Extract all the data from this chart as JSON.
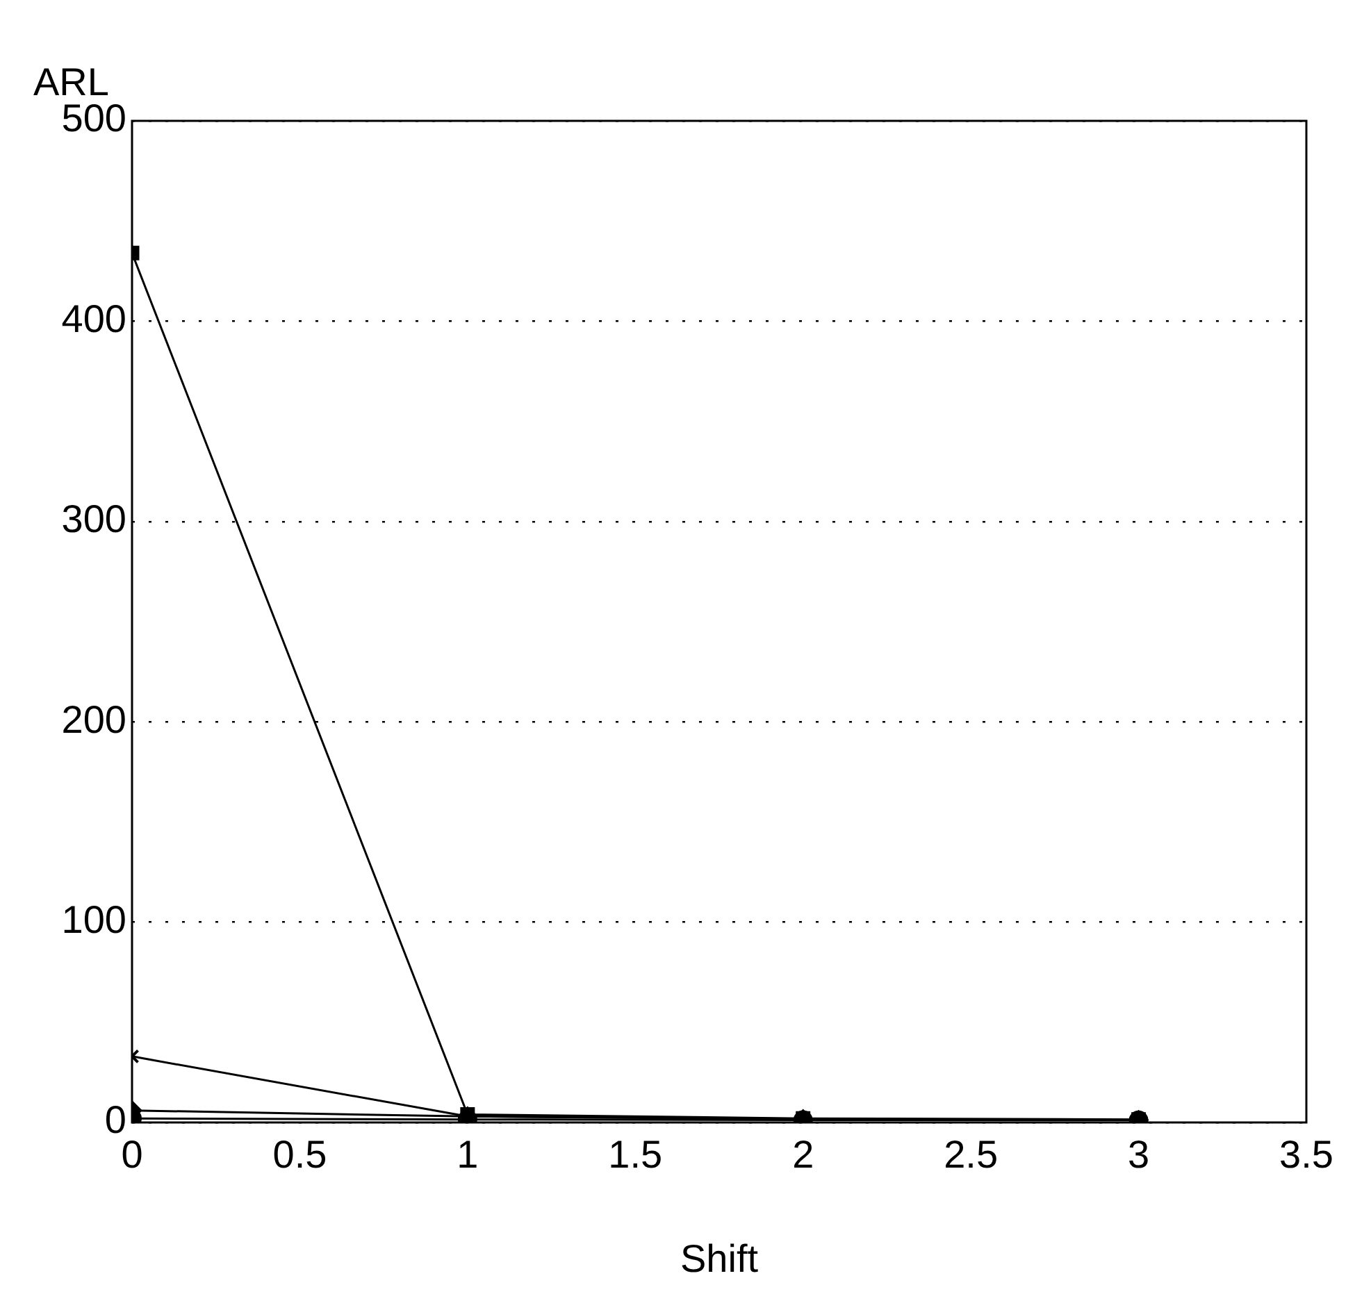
{
  "chart_data": {
    "type": "line",
    "xlabel": "Shift",
    "ylabel": "ARL",
    "xlim": [
      0,
      3.5
    ],
    "xticks": [
      0,
      0.5,
      1,
      1.5,
      2,
      2.5,
      3,
      3.5
    ],
    "ylim": [
      0,
      500
    ],
    "yticks": [
      0,
      100,
      200,
      300,
      400,
      500
    ],
    "grid": "y",
    "legend": false,
    "line_style": "solid",
    "x": [
      0,
      1,
      2,
      3
    ],
    "series": [
      {
        "color": "#000000",
        "marker": "square",
        "values": [
          434,
          4,
          2,
          1.5
        ]
      },
      {
        "color": "#000000",
        "marker": "cross",
        "values": [
          33,
          3,
          1.8,
          1.3
        ]
      },
      {
        "color": "#000000",
        "marker": "diamond",
        "values": [
          6,
          3,
          1.6,
          1.2
        ]
      },
      {
        "color": "#000000",
        "marker": "circle",
        "values": [
          2,
          1.5,
          1.2,
          1.1
        ]
      }
    ]
  }
}
